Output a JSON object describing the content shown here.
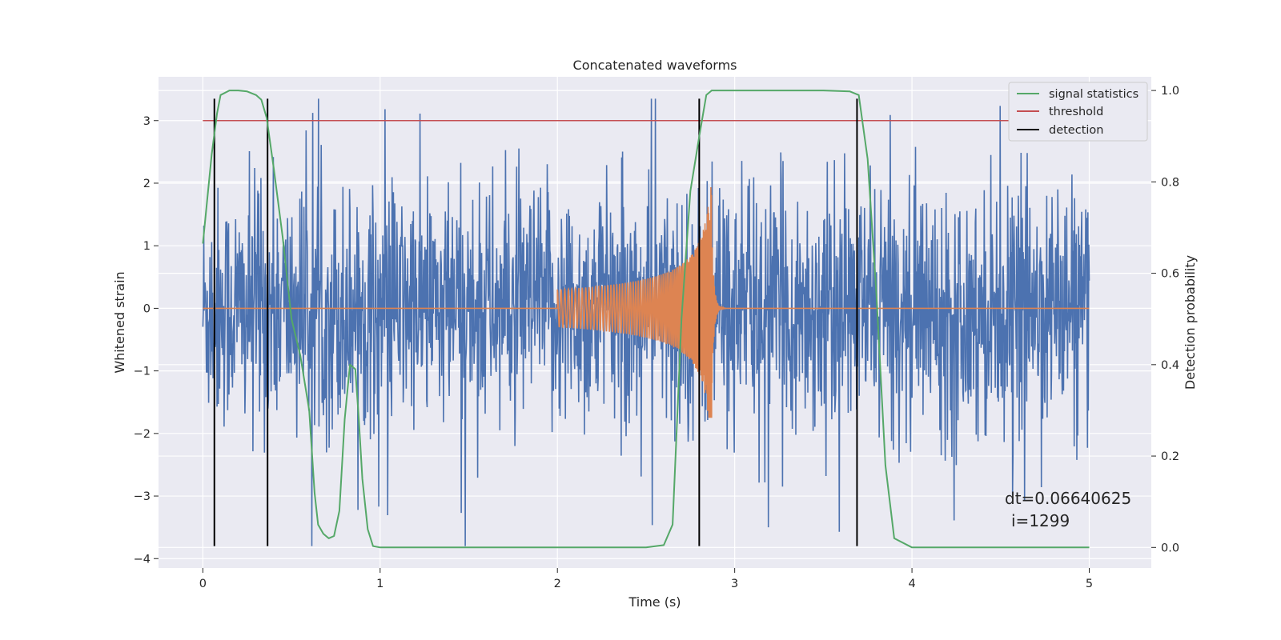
{
  "chart_data": {
    "type": "line",
    "title": "Concatenated waveforms",
    "xlabel": "Time (s)",
    "ylabel": "Whitened strain",
    "ylabel_right": "Detection probability",
    "xlim": [
      -0.25,
      5.35
    ],
    "ylim": [
      -4.15,
      3.7
    ],
    "ylim_right": [
      -0.045,
      1.03
    ],
    "xticks": [
      0,
      1,
      2,
      3,
      4,
      5
    ],
    "xtick_labels": [
      "0",
      "1",
      "2",
      "3",
      "4",
      "5"
    ],
    "yticks": [
      -4,
      -3,
      -2,
      -1,
      0,
      1,
      2,
      3
    ],
    "ytick_labels": [
      "−4",
      "−3",
      "−2",
      "−1",
      "0",
      "1",
      "2",
      "3"
    ],
    "yticks_right": [
      0.0,
      0.2,
      0.4,
      0.6,
      0.8,
      1.0
    ],
    "ytick_labels_right": [
      "0.0",
      "0.2",
      "0.4",
      "0.6",
      "0.8",
      "1.0"
    ],
    "grid": true,
    "legend_position": "top-right",
    "legend": [
      {
        "name": "signal statistics",
        "color": "#55a868"
      },
      {
        "name": "threshold",
        "color": "#c44e52"
      },
      {
        "name": "detection",
        "color": "#000000"
      }
    ],
    "noise": {
      "x_range": [
        0,
        5
      ],
      "typical_range": [
        -3.0,
        2.9
      ],
      "max": 3.35,
      "min": -3.8,
      "color": "#4c72b0"
    },
    "chirp": {
      "x_start": 2.0,
      "x_merger": 2.87,
      "x_end": 2.95,
      "amp_start": 0.3,
      "amp_peak": 2.25,
      "amp_min": -1.75,
      "color": "#dd8452"
    },
    "threshold": {
      "value": 3.0,
      "x_range": [
        0,
        5
      ]
    },
    "detections": [
      0.065,
      0.365,
      2.8,
      3.69
    ],
    "detection_y_range": [
      -3.8,
      3.35
    ],
    "signal_statistics": {
      "axis": "right",
      "x": [
        0.0,
        0.05,
        0.08,
        0.1,
        0.15,
        0.2,
        0.25,
        0.3,
        0.33,
        0.36,
        0.4,
        0.45,
        0.5,
        0.55,
        0.6,
        0.63,
        0.65,
        0.68,
        0.71,
        0.74,
        0.77,
        0.8,
        0.83,
        0.86,
        0.88,
        0.9,
        0.93,
        0.96,
        1.0,
        1.5,
        2.0,
        2.5,
        2.6,
        2.65,
        2.7,
        2.75,
        2.8,
        2.84,
        2.87,
        2.95,
        3.2,
        3.5,
        3.65,
        3.7,
        3.75,
        3.8,
        3.85,
        3.9,
        4.0,
        4.5,
        5.0
      ],
      "y": [
        0.665,
        0.86,
        0.95,
        0.99,
        1.0,
        1.0,
        0.998,
        0.99,
        0.98,
        0.94,
        0.83,
        0.68,
        0.5,
        0.42,
        0.3,
        0.12,
        0.05,
        0.03,
        0.02,
        0.025,
        0.08,
        0.28,
        0.4,
        0.39,
        0.28,
        0.15,
        0.04,
        0.003,
        0.0,
        0.0,
        0.0,
        0.0,
        0.005,
        0.05,
        0.5,
        0.78,
        0.9,
        0.99,
        1.0,
        1.0,
        1.0,
        1.0,
        0.998,
        0.99,
        0.85,
        0.55,
        0.18,
        0.02,
        0.0,
        0.0,
        0.0
      ]
    },
    "annotations": [
      "dt=0.06640625",
      "i=1299"
    ]
  }
}
